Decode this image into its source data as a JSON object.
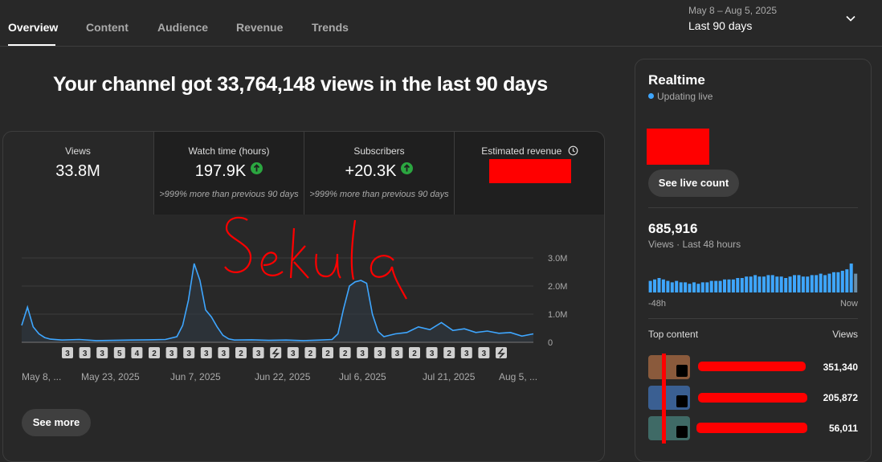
{
  "tabs": [
    "Overview",
    "Content",
    "Audience",
    "Revenue",
    "Trends"
  ],
  "date_selector": {
    "range": "May 8 – Aug 5, 2025",
    "label": "Last 90 days"
  },
  "headline": "Your channel got 33,764,148 views in the last 90 days",
  "metrics": [
    {
      "label": "Views",
      "value": "33.8M",
      "note": ""
    },
    {
      "label": "Watch time (hours)",
      "value": "197.9K",
      "note": ">999% more than previous 90 days"
    },
    {
      "label": "Subscribers",
      "value": "+20.3K",
      "note": ">999% more than previous 90 days"
    },
    {
      "label": "Estimated revenue",
      "value": "",
      "note": ""
    }
  ],
  "annotation_text": "Sekula",
  "colors": {
    "accent": "#3ea6ff",
    "positive": "#2ba640",
    "redaction": "#ff0000"
  },
  "chart_data": {
    "type": "area",
    "title": "",
    "xlabel": "",
    "ylabel": "",
    "ylim": [
      0,
      3000000
    ],
    "y_ticks": [
      "3.0M",
      "2.0M",
      "1.0M",
      "0"
    ],
    "x_tick_labels": [
      "May 8, ...",
      "May 23, 2025",
      "Jun 7, 2025",
      "Jun 22, 2025",
      "Jul 6, 2025",
      "Jul 21, 2025",
      "Aug 5, ..."
    ],
    "x": [
      "2025-05-08",
      "2025-05-09",
      "2025-05-10",
      "2025-05-11",
      "2025-05-12",
      "2025-05-13",
      "2025-05-15",
      "2025-05-18",
      "2025-05-21",
      "2025-05-24",
      "2025-05-27",
      "2025-05-30",
      "2025-06-02",
      "2025-06-04",
      "2025-06-05",
      "2025-06-06",
      "2025-06-07",
      "2025-06-08",
      "2025-06-09",
      "2025-06-10",
      "2025-06-11",
      "2025-06-12",
      "2025-06-13",
      "2025-06-14",
      "2025-06-17",
      "2025-06-20",
      "2025-06-23",
      "2025-06-26",
      "2025-06-29",
      "2025-07-01",
      "2025-07-02",
      "2025-07-03",
      "2025-07-04",
      "2025-07-05",
      "2025-07-06",
      "2025-07-07",
      "2025-07-08",
      "2025-07-09",
      "2025-07-10",
      "2025-07-12",
      "2025-07-14",
      "2025-07-16",
      "2025-07-18",
      "2025-07-20",
      "2025-07-22",
      "2025-07-24",
      "2025-07-26",
      "2025-07-28",
      "2025-07-30",
      "2025-08-01",
      "2025-08-03",
      "2025-08-05"
    ],
    "series": [
      {
        "values": [
          600000,
          1250000,
          550000,
          300000,
          170000,
          110000,
          80000,
          100000,
          60000,
          70000,
          80000,
          90000,
          100000,
          200000,
          600000,
          1500000,
          2800000,
          2200000,
          1150000,
          900000,
          550000,
          250000,
          120000,
          80000,
          90000,
          70000,
          80000,
          60000,
          80000,
          100000,
          300000,
          1200000,
          2000000,
          2150000,
          2200000,
          2100000,
          1000000,
          380000,
          200000,
          300000,
          350000,
          550000,
          450000,
          700000,
          420000,
          480000,
          350000,
          400000,
          320000,
          350000,
          220000,
          300000
        ]
      }
    ],
    "markers": [
      "3",
      "3",
      "3",
      "5",
      "4",
      "2",
      "3",
      "3",
      "3",
      "3",
      "2",
      "3",
      "",
      "3",
      "2",
      "2",
      "2",
      "3",
      "3",
      "3",
      "2",
      "3",
      "2",
      "3",
      "3",
      ""
    ]
  },
  "see_more": "See more",
  "realtime": {
    "title": "Realtime",
    "status": "Updating live",
    "see_live": "See live count",
    "views_value": "685,916",
    "views_label": "Views · Last 48 hours",
    "axis_left": "-48h",
    "axis_right": "Now",
    "hourly_values": [
      8,
      9,
      10,
      9,
      8,
      7,
      8,
      7,
      7,
      6,
      7,
      6,
      7,
      7,
      8,
      8,
      8,
      9,
      9,
      9,
      10,
      10,
      11,
      11,
      12,
      11,
      11,
      12,
      12,
      11,
      11,
      10,
      11,
      12,
      12,
      11,
      11,
      12,
      12,
      13,
      12,
      13,
      14,
      14,
      15,
      16,
      20,
      13
    ],
    "top_content_label": "Top content",
    "top_content_views_label": "Views",
    "top_content": [
      {
        "views": "351,340",
        "thumb_color": "#8a5a3c"
      },
      {
        "views": "205,872",
        "thumb_color": "#3a5f92"
      },
      {
        "views": "56,011",
        "thumb_color": "#3f6a66"
      }
    ]
  }
}
